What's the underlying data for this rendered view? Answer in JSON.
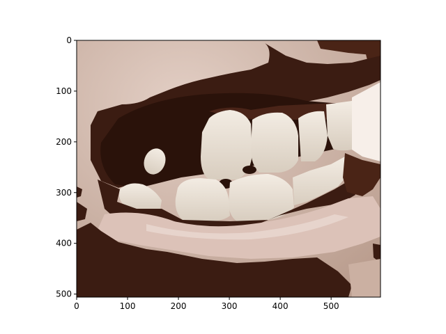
{
  "chart_data": {
    "type": "image",
    "image_width": 597,
    "image_height": 506,
    "xlim": [
      0,
      597
    ],
    "ylim": [
      506,
      0
    ],
    "x_ticks": [
      0,
      100,
      200,
      300,
      400,
      500
    ],
    "y_ticks": [
      0,
      100,
      200,
      300,
      400,
      500
    ],
    "x_tick_labels": [
      "0",
      "100",
      "200",
      "300",
      "400",
      "500"
    ],
    "y_tick_labels": [
      "0",
      "100",
      "200",
      "300",
      "400",
      "500"
    ],
    "title": "",
    "xlabel": "",
    "ylabel": "",
    "grid": false
  },
  "image": {
    "subject": "close-up of a smiling mouth showing upper and lower teeth with posterized dark patches",
    "colors": {
      "skin": "#c9b0a2",
      "skin_light": "#e6d6cf",
      "lip": "#d9bcb1",
      "dark": "#3b1c12",
      "mouth_shadow": "#2a120a",
      "tooth": "#ece4da",
      "tooth_shade": "#d7ccbd"
    }
  }
}
